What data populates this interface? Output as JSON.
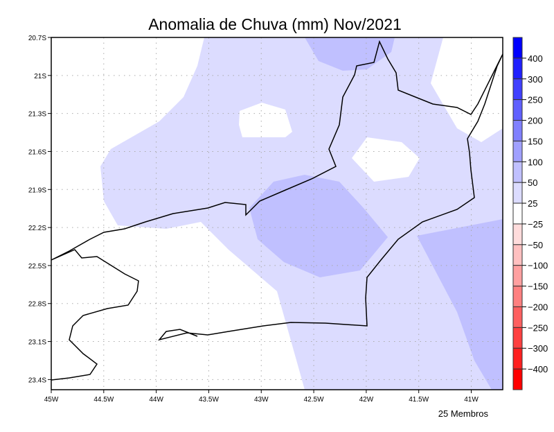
{
  "title": "Anomalia de Chuva (mm) Nov/2021",
  "footer": "25 Membros",
  "chart_data": {
    "type": "heatmap",
    "title": "Anomalia de Chuva (mm) Nov/2021",
    "variable": "rainfall anomaly (mm)",
    "lon_range": [
      -45,
      -40.7
    ],
    "lat_range": [
      -23.48,
      -20.7
    ],
    "x_ticks": [
      {
        "v": -45,
        "label": "45W"
      },
      {
        "v": -44.5,
        "label": "44.5W"
      },
      {
        "v": -44,
        "label": "44W"
      },
      {
        "v": -43.5,
        "label": "43.5W"
      },
      {
        "v": -43,
        "label": "43W"
      },
      {
        "v": -42.5,
        "label": "42.5W"
      },
      {
        "v": -42,
        "label": "42W"
      },
      {
        "v": -41.5,
        "label": "41.5W"
      },
      {
        "v": -41,
        "label": "41W"
      }
    ],
    "y_ticks": [
      {
        "v": -20.7,
        "label": "20.7S"
      },
      {
        "v": -21,
        "label": "21S"
      },
      {
        "v": -21.3,
        "label": "21.3S"
      },
      {
        "v": -21.6,
        "label": "21.6S"
      },
      {
        "v": -21.9,
        "label": "21.9S"
      },
      {
        "v": -22.2,
        "label": "22.2S"
      },
      {
        "v": -22.5,
        "label": "22.5S"
      },
      {
        "v": -22.8,
        "label": "22.8S"
      },
      {
        "v": -23.1,
        "label": "23.1S"
      },
      {
        "v": -23.4,
        "label": "23.4S"
      }
    ],
    "grid": true,
    "colorbar": {
      "position": "right",
      "labels": [
        "400",
        "300",
        "250",
        "200",
        "150",
        "100",
        "50",
        "25",
        "-25",
        "-50",
        "-100",
        "-150",
        "-200",
        "-250",
        "-300",
        "-400"
      ],
      "colors": [
        "#0000ff",
        "#2020ff",
        "#4040ff",
        "#6060ff",
        "#8080ff",
        "#a0a0ff",
        "#c0c0ff",
        "#dcdcff",
        "#ffffff",
        "#ffdcdc",
        "#ffc0c0",
        "#ffa0a0",
        "#ff8080",
        "#ff6060",
        "#ff4040",
        "#ff2020",
        "#ff0000"
      ]
    }
  }
}
